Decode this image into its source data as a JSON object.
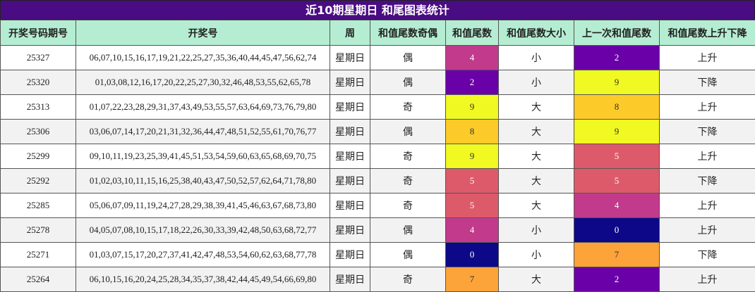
{
  "title": "近10期星期日 和尾图表统计",
  "table": {
    "headers": [
      "开奖号码期号",
      "开奖号",
      "周",
      "和值尾数奇偶",
      "和值尾数",
      "和值尾数大小",
      "上一次和值尾数",
      "和值尾数上升下降"
    ],
    "rows": [
      [
        "25327",
        "06,07,10,15,16,17,19,21,22,25,27,35,36,40,44,45,47,56,62,74",
        "星期日",
        "偶",
        4,
        "小",
        2,
        "上升"
      ],
      [
        "25320",
        "01,03,08,12,16,17,20,22,25,27,30,32,46,48,53,55,62,65,78",
        "星期日",
        "偶",
        2,
        "小",
        9,
        "下降"
      ],
      [
        "25313",
        "01,07,22,23,28,29,31,37,43,49,53,55,57,63,64,69,73,76,79,80",
        "星期日",
        "奇",
        9,
        "大",
        8,
        "上升"
      ],
      [
        "25306",
        "03,06,07,14,17,20,21,31,32,36,44,47,48,51,52,55,61,70,76,77",
        "星期日",
        "偶",
        8,
        "大",
        9,
        "下降"
      ],
      [
        "25299",
        "09,10,11,19,23,25,39,41,45,51,53,54,59,60,63,65,68,69,70,75",
        "星期日",
        "奇",
        9,
        "大",
        5,
        "上升"
      ],
      [
        "25292",
        "01,02,03,10,11,15,16,25,38,40,43,47,50,52,57,62,64,71,78,80",
        "星期日",
        "奇",
        5,
        "大",
        5,
        "下降"
      ],
      [
        "25285",
        "05,06,07,09,11,19,24,27,28,29,38,39,41,45,46,63,67,68,73,80",
        "星期日",
        "奇",
        5,
        "大",
        4,
        "上升"
      ],
      [
        "25278",
        "04,05,07,08,10,15,17,18,22,26,30,33,39,42,48,50,63,68,72,77",
        "星期日",
        "偶",
        4,
        "小",
        0,
        "上升"
      ],
      [
        "25271",
        "01,03,07,15,17,20,27,37,41,42,47,48,53,54,60,62,63,68,77,78",
        "星期日",
        "偶",
        0,
        "小",
        7,
        "下降"
      ],
      [
        "25264",
        "06,10,15,16,20,24,25,28,34,35,37,38,42,44,45,49,54,66,69,80",
        "星期日",
        "奇",
        7,
        "大",
        2,
        "上升"
      ]
    ],
    "tail_colors": {
      "0": "#0d0887",
      "2": "#6a00a8",
      "4": "#c13a8c",
      "5": "#dd5a6a",
      "7": "#fca33a",
      "8": "#fccb2a",
      "9": "#f0f921"
    }
  }
}
